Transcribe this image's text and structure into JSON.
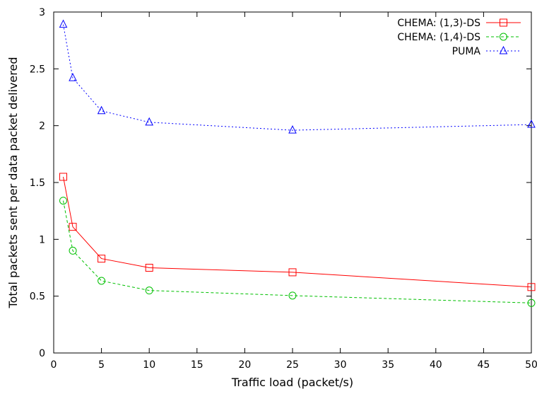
{
  "chart_data": {
    "type": "line",
    "xlabel": "Traffic load (packet/s)",
    "ylabel": "Total packets sent per data packet delivered",
    "xlim": [
      0,
      50
    ],
    "ylim": [
      0,
      3
    ],
    "xticks": [
      "0",
      "5",
      "10",
      "15",
      "20",
      "25",
      "30",
      "35",
      "40",
      "45",
      "50"
    ],
    "yticks": [
      "0",
      "0.5",
      "1",
      "1.5",
      "2",
      "2.5",
      "3"
    ],
    "grid": false,
    "legend_position": "top-right",
    "x": [
      1,
      2,
      5,
      10,
      25,
      50
    ],
    "series": [
      {
        "name": "CHEMA: (1,3)-DS",
        "values": [
          1.55,
          1.11,
          0.83,
          0.75,
          0.71,
          0.58
        ],
        "color": "#ff0000",
        "marker": "square",
        "dash": "solid"
      },
      {
        "name": "CHEMA: (1,4)-DS",
        "values": [
          1.34,
          0.9,
          0.635,
          0.55,
          0.505,
          0.44
        ],
        "color": "#00c000",
        "marker": "circle",
        "dash": "dashed"
      },
      {
        "name": "PUMA",
        "values": [
          2.89,
          2.42,
          2.13,
          2.03,
          1.96,
          2.01
        ],
        "color": "#0000ff",
        "marker": "triangle",
        "dash": "dotted"
      }
    ]
  }
}
